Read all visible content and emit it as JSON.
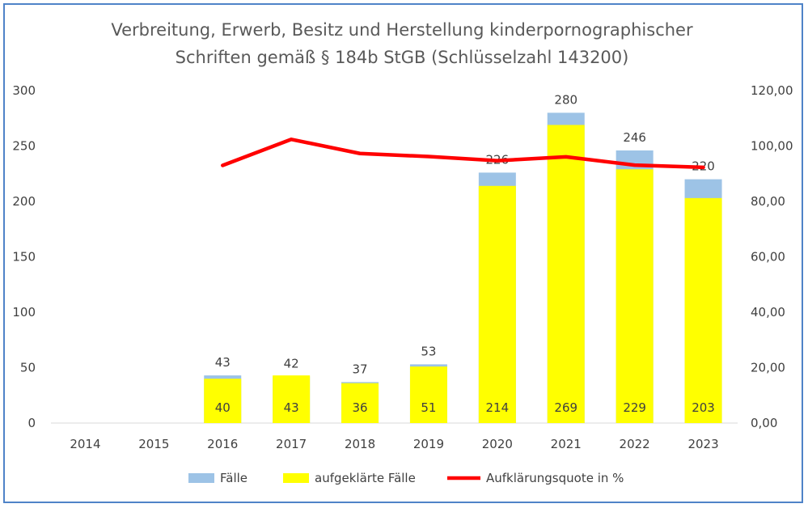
{
  "chart_data": {
    "type": "bar",
    "title_line1": "Verbreitung, Erwerb, Besitz und Herstellung kinderpornographischer",
    "title_line2": "Schriften gemäß § 184b StGB (Schlüsselzahl 143200)",
    "categories": [
      "2014",
      "2015",
      "2016",
      "2017",
      "2018",
      "2019",
      "2020",
      "2021",
      "2022",
      "2023"
    ],
    "series": [
      {
        "name": "Fälle",
        "color": "#9dc3e6",
        "values": [
          null,
          null,
          43,
          42,
          37,
          53,
          226,
          280,
          246,
          220
        ]
      },
      {
        "name": "aufgeklärte Fälle",
        "color": "#ffff00",
        "values": [
          null,
          null,
          40,
          43,
          36,
          51,
          214,
          269,
          229,
          203
        ]
      },
      {
        "name": "Aufklärungsquote in %",
        "color": "#ff0000",
        "axis": "right",
        "values": [
          null,
          null,
          93.0,
          102.4,
          97.3,
          96.2,
          94.7,
          96.1,
          93.1,
          92.3
        ]
      }
    ],
    "ylim_left": [
      0,
      300
    ],
    "ylim_right": [
      0,
      120
    ],
    "yticks_left": [
      "0",
      "50",
      "100",
      "150",
      "200",
      "250",
      "300"
    ],
    "yticks_right": [
      "0,00",
      "20,00",
      "40,00",
      "60,00",
      "80,00",
      "100,00",
      "120,00"
    ],
    "grid": false,
    "legend_position": "bottom"
  }
}
